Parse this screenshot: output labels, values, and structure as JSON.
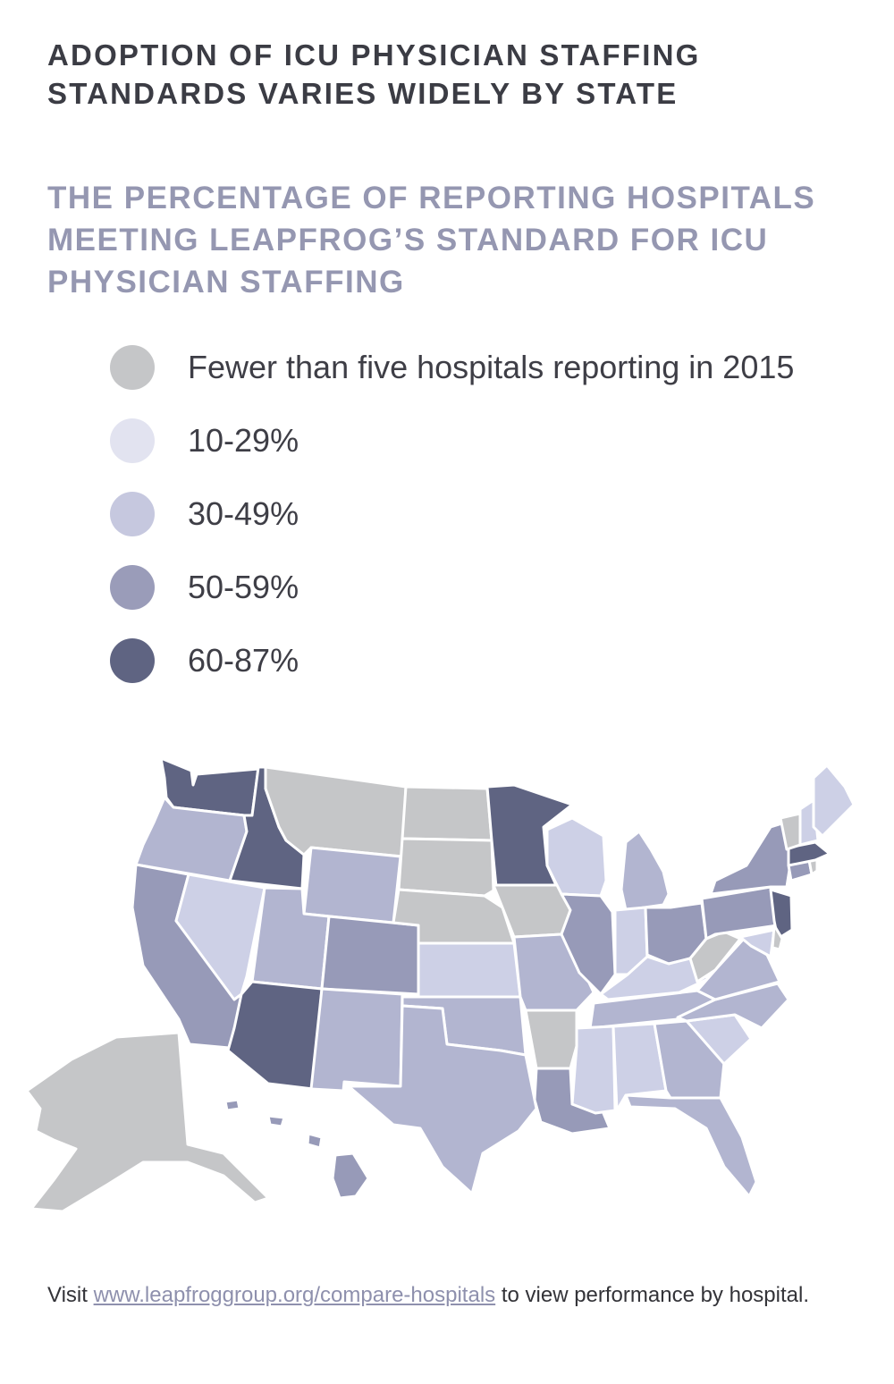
{
  "headline": {
    "line1": "ADOPTION OF ICU PHYSICIAN STAFFING",
    "line2": "STANDARDS VARIES WIDELY BY STATE"
  },
  "subhead": {
    "line1": "THE PERCENTAGE OF REPORTING HOSPITALS",
    "line2": "MEETING LEAPFROG’S STANDARD FOR ICU",
    "line3": "PHYSICIAN STAFFING"
  },
  "legend": [
    {
      "label": "Fewer than five hospitals reporting in 2015",
      "color": "#c5c6c8"
    },
    {
      "label": "10-29%",
      "color": "#e2e3f0"
    },
    {
      "label": "30-49%",
      "color": "#c6c8df"
    },
    {
      "label": "50-59%",
      "color": "#9a9cb9"
    },
    {
      "label": "60-87%",
      "color": "#5f6482"
    }
  ],
  "map": {
    "categories": {
      "insufficient": "#c5c6c8",
      "10-29": "#cdd0e6",
      "30-49": "#b2b5d0",
      "50-59": "#979ab8",
      "60-87": "#5f6482"
    },
    "states": {
      "WA": "60-87",
      "ID": "60-87",
      "MN": "60-87",
      "AZ": "60-87",
      "NJ": "60-87",
      "MA": "60-87",
      "CA": "50-59",
      "CO": "50-59",
      "LA": "50-59",
      "NY": "50-59",
      "PA": "50-59",
      "OH": "50-59",
      "IL": "50-59",
      "HI": "50-59",
      "CT": "50-59",
      "OR": "30-49",
      "WY": "30-49",
      "UT": "30-49",
      "NM": "30-49",
      "TX": "30-49",
      "OK": "30-49",
      "MO": "30-49",
      "MI": "30-49",
      "GA": "30-49",
      "FL": "30-49",
      "NC": "30-49",
      "TN": "30-49",
      "VA": "30-49",
      "NV": "10-29",
      "KS": "10-29",
      "WI": "10-29",
      "IN": "10-29",
      "KY": "10-29",
      "MS": "10-29",
      "AL": "10-29",
      "SC": "10-29",
      "ME": "10-29",
      "NH": "10-29",
      "MD": "10-29",
      "MT": "insufficient",
      "ND": "insufficient",
      "SD": "insufficient",
      "NE": "insufficient",
      "IA": "insufficient",
      "AR": "insufficient",
      "WV": "insufficient",
      "VT": "insufficient",
      "DE": "insufficient",
      "AK": "insufficient",
      "RI": "insufficient"
    }
  },
  "footer": {
    "prefix": "Visit ",
    "link": "www.leapfroggroup.org/compare-hospitals",
    "suffix": " to view performance by hospital."
  }
}
